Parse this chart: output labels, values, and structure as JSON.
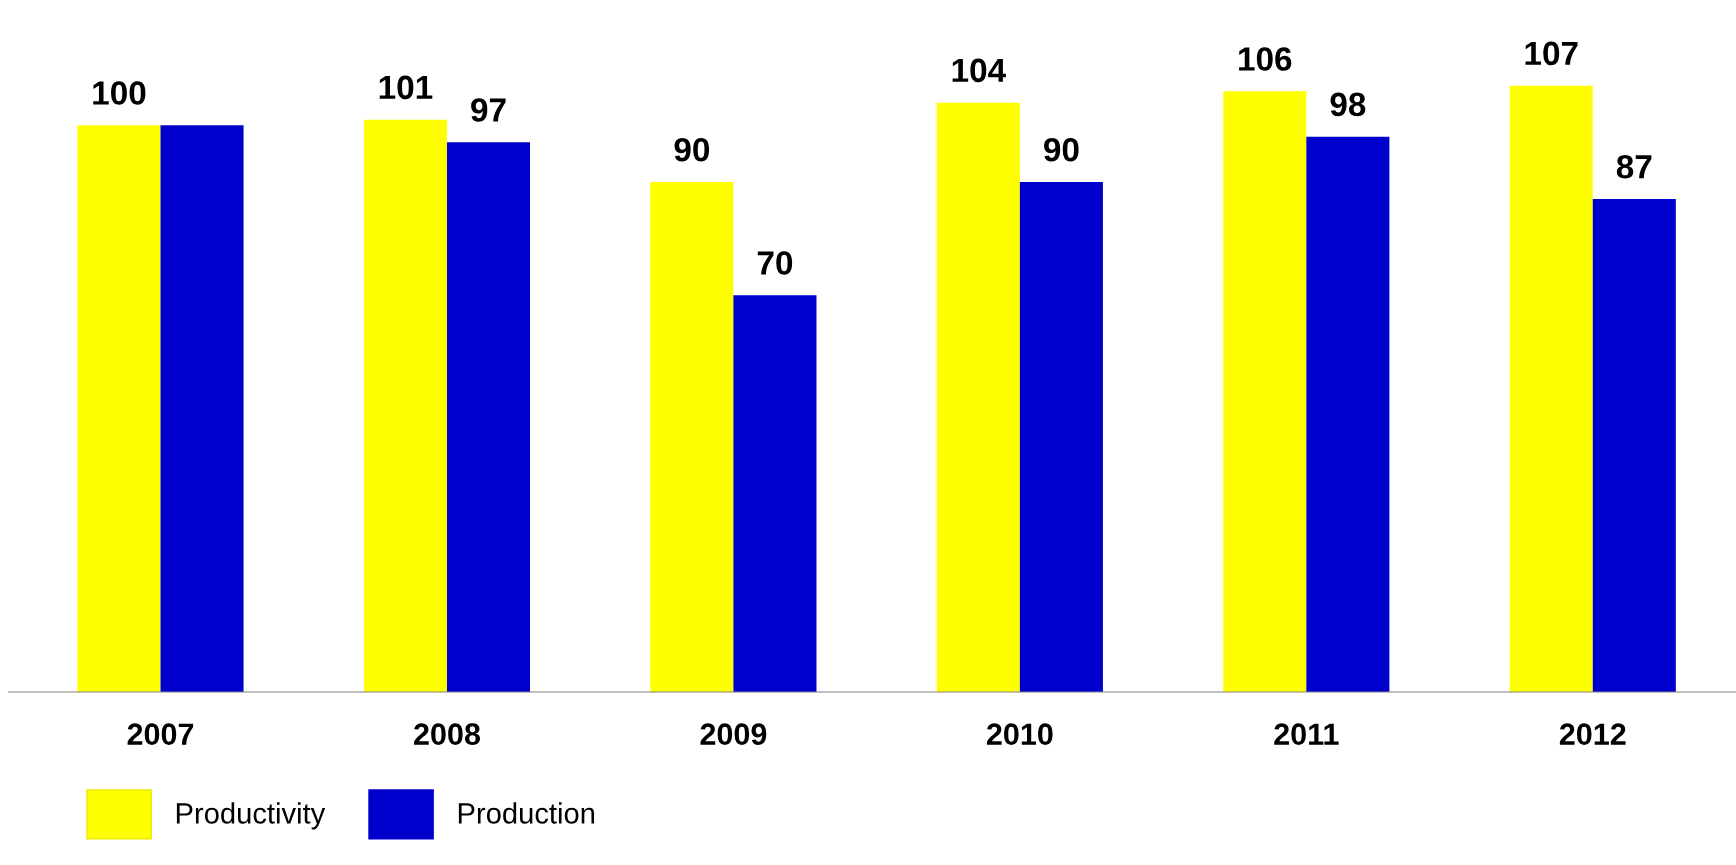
{
  "chart_data": {
    "type": "bar",
    "categories": [
      "2007",
      "2008",
      "2009",
      "2010",
      "2011",
      "2012"
    ],
    "series": [
      {
        "name": "Productivity",
        "color": "#ffff00",
        "values": [
          100,
          101,
          90,
          104,
          106,
          107
        ],
        "value_labels": [
          "100",
          "101",
          "90",
          "104",
          "106",
          "107"
        ]
      },
      {
        "name": "Production",
        "color": "#0000cc",
        "values": [
          100,
          97,
          70,
          90,
          98,
          87
        ],
        "value_labels": [
          null,
          "97",
          "70",
          "90",
          "98",
          "87"
        ]
      }
    ],
    "legend": "bottom left",
    "tick_labels": "x"
  }
}
